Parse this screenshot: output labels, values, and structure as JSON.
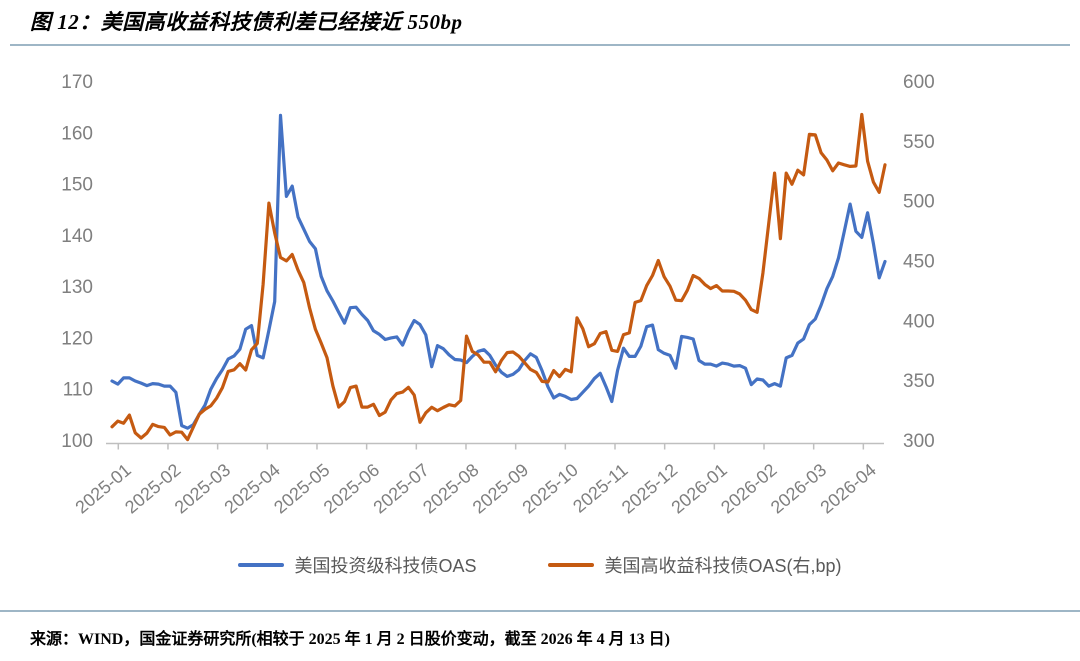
{
  "title": "图 12：美国高收益科技债利差已经接近 550bp",
  "source_note": "来源：WIND，国金证券研究所(相较于 2025 年 1 月 2 日股价变动，截至 2026 年 4 月 13 日)",
  "colors": {
    "accent_rule": "#9EB6C6",
    "axis_text": "#7F7F7F",
    "axis_line": "#BFBFBF",
    "legend_text": "#595959"
  },
  "chart_data": {
    "type": "line",
    "title": "图 12：美国高收益科技债利差已经接近 550bp",
    "grid": false,
    "legend_position": "bottom",
    "x_tick_labels": [
      "2025-01",
      "2025-02",
      "2025-03",
      "2025-04",
      "2025-05",
      "2025-06",
      "2025-07",
      "2025-08",
      "2025-09",
      "2025-10",
      "2025-11",
      "2025-12",
      "2026-01",
      "2026-02",
      "2026-03",
      "2026-04"
    ],
    "x_range_note": "values sampled uniformly from 2025-01 start to 2026-04-13 end (per source note)",
    "left_axis": {
      "min": 100,
      "max": 170,
      "ticks": [
        100,
        110,
        120,
        130,
        140,
        150,
        160,
        170
      ]
    },
    "right_axis": {
      "min": 300,
      "max": 600,
      "ticks": [
        300,
        350,
        400,
        450,
        500,
        550,
        600
      ]
    },
    "series": [
      {
        "name": "美国投资级科技债OAS",
        "axis": "left",
        "color": "#4472C4",
        "values": [
          111.5,
          110.9,
          112.1,
          112.1,
          111.5,
          111.1,
          110.6,
          111.0,
          110.9,
          110.5,
          110.5,
          109.3,
          102.8,
          102.3,
          103.0,
          105.0,
          106.8,
          109.9,
          112.0,
          113.7,
          115.8,
          116.4,
          117.7,
          121.6,
          122.3,
          116.5,
          116.0,
          121.4,
          127.0,
          163.3,
          147.5,
          149.5,
          143.5,
          141.1,
          138.7,
          137.3,
          131.9,
          129.1,
          127.1,
          124.9,
          122.8,
          125.8,
          125.9,
          124.5,
          123.3,
          121.3,
          120.6,
          119.6,
          119.9,
          120.1,
          118.5,
          121.2,
          123.3,
          122.5,
          120.5,
          114.3,
          118.4,
          117.8,
          116.6,
          115.7,
          115.6,
          115.1,
          116.3,
          117.3,
          117.6,
          116.5,
          114.6,
          113.2,
          112.4,
          112.8,
          113.7,
          115.5,
          116.8,
          116.1,
          113.5,
          110.4,
          108.2,
          108.9,
          108.5,
          107.9,
          108.1,
          109.3,
          110.5,
          112.0,
          113.0,
          110.4,
          107.5,
          113.6,
          117.9,
          116.3,
          116.3,
          118.3,
          122.1,
          122.4,
          117.6,
          116.9,
          116.5,
          114.0,
          120.2,
          120.0,
          119.7,
          115.5,
          114.8,
          114.8,
          114.4,
          115.0,
          114.8,
          114.4,
          114.5,
          114.0,
          110.8,
          111.9,
          111.7,
          110.5,
          111.0,
          110.5,
          116.0,
          116.5,
          118.9,
          119.7,
          122.5,
          123.6,
          126.3,
          129.5,
          131.9,
          135.5,
          140.7,
          146.0,
          140.7,
          139.5,
          144.3,
          138.3,
          131.6,
          134.8
        ]
      },
      {
        "name": "美国高收益科技债OAS(右,bp)",
        "axis": "right",
        "color": "#C55A11",
        "values": [
          311,
          315.8,
          314,
          320.8,
          306,
          301.7,
          305.8,
          313,
          311.2,
          310.5,
          304.2,
          306.8,
          306.5,
          300.3,
          310.9,
          321.5,
          325.6,
          328.6,
          334.9,
          343.7,
          357.3,
          358.7,
          363.8,
          358.5,
          375.4,
          380.7,
          430,
          498,
          473,
          452.5,
          449.7,
          455,
          442,
          431.5,
          410.3,
          392.5,
          381,
          368.8,
          345,
          327.5,
          332,
          343.8,
          345,
          327.5,
          327.5,
          329.8,
          320.5,
          323.3,
          333.5,
          338.8,
          340,
          344,
          337.5,
          314.8,
          322.7,
          327.3,
          324.5,
          327.2,
          329.5,
          328.5,
          333,
          386.8,
          374,
          371,
          365,
          365,
          357,
          366.5,
          373,
          373.5,
          370,
          364.5,
          359,
          356.5,
          349,
          348.5,
          358,
          353,
          359,
          357,
          402,
          393,
          378,
          380.5,
          389,
          390.5,
          375,
          374,
          388,
          389.5,
          415,
          416.5,
          429,
          437.5,
          450,
          436.5,
          428.5,
          416.8,
          416.5,
          425.2,
          437.5,
          435,
          430,
          426.5,
          429,
          424.5,
          424.5,
          424.3,
          422,
          416.8,
          409,
          406.7,
          439.5,
          481.5,
          523,
          468.3,
          523,
          513.8,
          525.5,
          521.5,
          555.5,
          555,
          540,
          534,
          525,
          531.5,
          530,
          528.6,
          529,
          572,
          533,
          515.5,
          507,
          530
        ]
      }
    ]
  }
}
